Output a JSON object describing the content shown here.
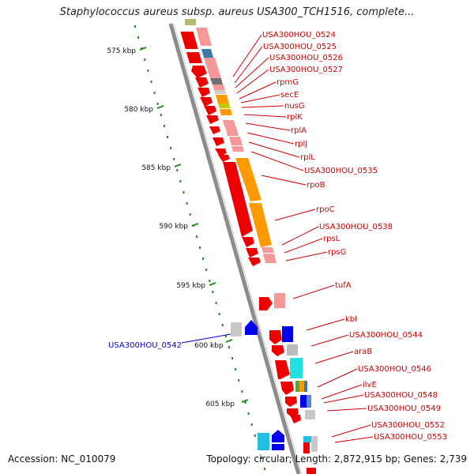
{
  "title": "Staphylococcus aureus subsp. aureus USA300_TCH1516, complete...",
  "footer": {
    "accession": "Accession: NC_010079",
    "topology": "Topology: circular; Length: 2,872,915 bp; Genes: 2,739"
  },
  "colors": {
    "backbone": "#8c8c8c",
    "ruler": "#1a8a1a",
    "forward_label": "#cc0000",
    "reverse_label": "#0000cc"
  },
  "ruler_ticks": [
    "575 kbp",
    "580 kbp",
    "585 kbp",
    "590 kbp",
    "595 kbp",
    "600 kbp",
    "605 kbp"
  ],
  "gene_labels_forward": [
    "USA300HOU_0524",
    "USA300HOU_0525",
    "USA300HOU_0526",
    "USA300HOU_0527",
    "rpmG",
    "secE",
    "nusG",
    "rplK",
    "rplA",
    "rplJ",
    "rplL",
    "USA300HOU_0535",
    "rpoB",
    "rpoC",
    "USA300HOU_0538",
    "rpsL",
    "rpsG",
    "tufA",
    "kbl",
    "USA300HOU_0544",
    "araB",
    "USA300HOU_0546",
    "ilvE",
    "USA300HOU_0548",
    "USA300HOU_0549",
    "USA300HOU_0552",
    "USA300HOU_0553"
  ],
  "gene_labels_reverse": [
    "USA300HOU_0542"
  ]
}
